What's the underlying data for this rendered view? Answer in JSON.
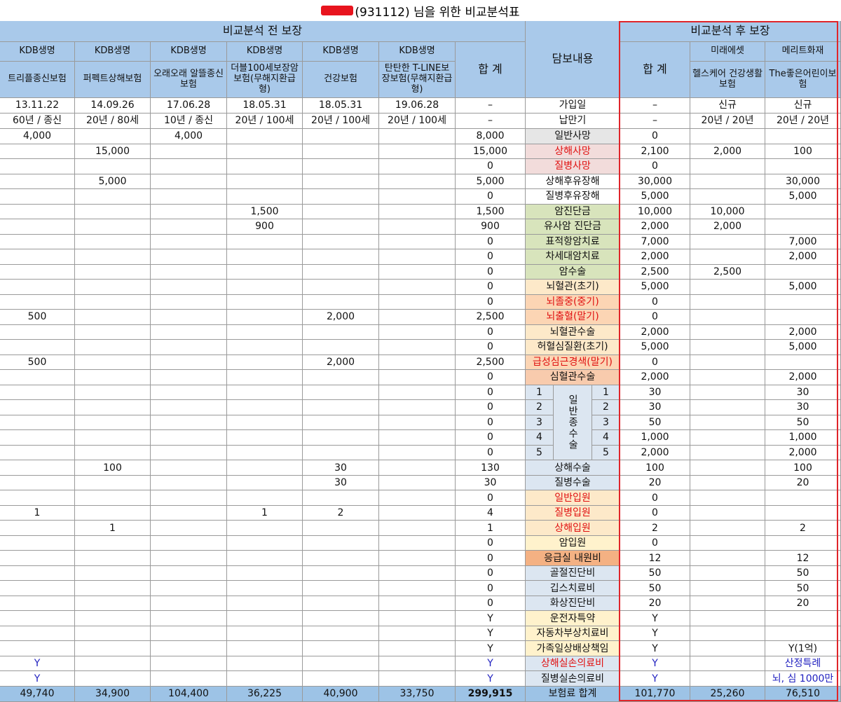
{
  "title": "(931112) 님을 위한 비교분석표",
  "header": {
    "before_label": "비교분석 전 보장",
    "after_label": "비교분석 후 보장",
    "content_label": "담보내용",
    "sum_label": "합 계",
    "after_sum_label": "합 계"
  },
  "before_plans": [
    {
      "company": "KDB생명",
      "name": "트리플종신보험",
      "join": "13.11.22",
      "term": "60년 / 종신"
    },
    {
      "company": "KDB생명",
      "name": "퍼펙트상해보험",
      "join": "14.09.26",
      "term": "20년 / 80세"
    },
    {
      "company": "KDB생명",
      "name": "오래오래 알뜰종신보험",
      "join": "17.06.28",
      "term": "10년 / 종신"
    },
    {
      "company": "KDB생명",
      "name": "더블100세보장암보험(무해지환급형)",
      "join": "18.05.31",
      "term": "20년 / 100세"
    },
    {
      "company": "KDB생명",
      "name": "건강보험",
      "join": "18.05.31",
      "term": "20년 / 100세"
    },
    {
      "company": "KDB생명",
      "name": "탄탄한 T-LINE보장보험(무해지환급형)",
      "join": "19.06.28",
      "term": "20년 / 100세"
    }
  ],
  "after_plans": [
    {
      "company": "미래에셋",
      "name": "헬스케어 건강생활보험",
      "join": "신규",
      "term": "20년 / 20년"
    },
    {
      "company": "메리트화재",
      "name": "The좋은어린이보험",
      "join": "신규",
      "term": "20년 / 20년"
    }
  ],
  "info_rows": [
    {
      "label": "가입일",
      "sum": "–",
      "after_sum": "–"
    },
    {
      "label": "납만기",
      "sum": "–",
      "after_sum": "–"
    }
  ],
  "surgery_group_label": "일반종수술",
  "rows": [
    {
      "label": "일반사망",
      "bg": "#e6e6e6",
      "before": [
        "4,000",
        null,
        "4,000",
        null,
        null,
        null
      ],
      "sum": "8,000",
      "after_sum": "0",
      "after": [
        null,
        null
      ]
    },
    {
      "label": "상해사망",
      "label_color": "#e01010",
      "bg": "#f2dcdb",
      "before": [
        null,
        "15,000",
        null,
        null,
        null,
        null
      ],
      "sum": "15,000",
      "after_sum": "2,100",
      "after": [
        "2,000",
        "100"
      ]
    },
    {
      "label": "질병사망",
      "label_color": "#e01010",
      "bg": "#f2dcdb",
      "before": [
        null,
        null,
        null,
        null,
        null,
        null
      ],
      "sum": "0",
      "after_sum": "0",
      "after": [
        null,
        null
      ]
    },
    {
      "label": "상해후유장해",
      "bg": "#ffffff",
      "before": [
        null,
        "5,000",
        null,
        null,
        null,
        null
      ],
      "sum": "5,000",
      "after_sum": "30,000",
      "after": [
        null,
        "30,000"
      ]
    },
    {
      "label": "질병후유장해",
      "bg": "#ffffff",
      "before": [
        null,
        null,
        null,
        null,
        null,
        null
      ],
      "sum": "0",
      "after_sum": "5,000",
      "after": [
        null,
        "5,000"
      ]
    },
    {
      "label": "암진단금",
      "bg": "#d8e4bc",
      "before": [
        null,
        null,
        null,
        "1,500",
        null,
        null
      ],
      "sum": "1,500",
      "after_sum": "10,000",
      "after": [
        "10,000",
        null
      ]
    },
    {
      "label": "유사암 진단금",
      "bg": "#d8e4bc",
      "before": [
        null,
        null,
        null,
        "900",
        null,
        null
      ],
      "sum": "900",
      "after_sum": "2,000",
      "after": [
        "2,000",
        null
      ]
    },
    {
      "label": "표적항암치료",
      "bg": "#d8e4bc",
      "before": [
        null,
        null,
        null,
        null,
        null,
        null
      ],
      "sum": "0",
      "after_sum": "7,000",
      "after": [
        null,
        "7,000"
      ]
    },
    {
      "label": "차세대암치료",
      "bg": "#d8e4bc",
      "before": [
        null,
        null,
        null,
        null,
        null,
        null
      ],
      "sum": "0",
      "after_sum": "2,000",
      "after": [
        null,
        "2,000"
      ]
    },
    {
      "label": "암수술",
      "bg": "#d8e4bc",
      "before": [
        null,
        null,
        null,
        null,
        null,
        null
      ],
      "sum": "0",
      "after_sum": "2,500",
      "after": [
        "2,500",
        null
      ]
    },
    {
      "label": "뇌혈관(초기)",
      "bg": "#fde9c9",
      "before": [
        null,
        null,
        null,
        null,
        null,
        null
      ],
      "sum": "0",
      "after_sum": "5,000",
      "after": [
        null,
        "5,000"
      ]
    },
    {
      "label": "뇌졸중(중기)",
      "label_color": "#e01010",
      "bg": "#fcd5b4",
      "before": [
        null,
        null,
        null,
        null,
        null,
        null
      ],
      "sum": "0",
      "after_sum": "0",
      "after": [
        null,
        null
      ]
    },
    {
      "label": "뇌출혈(말기)",
      "label_color": "#e01010",
      "bg": "#fcd5b4",
      "before": [
        "500",
        null,
        null,
        null,
        "2,000",
        null
      ],
      "sum": "2,500",
      "after_sum": "0",
      "after": [
        null,
        null
      ]
    },
    {
      "label": "뇌혈관수술",
      "bg": "#fde9c9",
      "before": [
        null,
        null,
        null,
        null,
        null,
        null
      ],
      "sum": "0",
      "after_sum": "2,000",
      "after": [
        null,
        "2,000"
      ]
    },
    {
      "label": "허혈심질환(초기)",
      "bg": "#fde9c9",
      "before": [
        null,
        null,
        null,
        null,
        null,
        null
      ],
      "sum": "0",
      "after_sum": "5,000",
      "after": [
        null,
        "5,000"
      ]
    },
    {
      "label": "급성심근경색(말기)",
      "label_color": "#e01010",
      "bg": "#fcd5b4",
      "before": [
        "500",
        null,
        null,
        null,
        "2,000",
        null
      ],
      "sum": "2,500",
      "after_sum": "0",
      "after": [
        null,
        null
      ]
    },
    {
      "label": "심혈관수술",
      "bg": "#f8cbad",
      "before": [
        null,
        null,
        null,
        null,
        null,
        null
      ],
      "sum": "0",
      "after_sum": "2,000",
      "after": [
        null,
        "2,000"
      ]
    },
    {
      "grade": "1",
      "bg": "#dce6f1",
      "before": [
        null,
        null,
        null,
        null,
        null,
        null
      ],
      "sum": "0",
      "after_sum": "30",
      "after": [
        null,
        "30"
      ]
    },
    {
      "grade": "2",
      "bg": "#dce6f1",
      "before": [
        null,
        null,
        null,
        null,
        null,
        null
      ],
      "sum": "0",
      "after_sum": "30",
      "after": [
        null,
        "30"
      ]
    },
    {
      "grade": "3",
      "bg": "#dce6f1",
      "before": [
        null,
        null,
        null,
        null,
        null,
        null
      ],
      "sum": "0",
      "after_sum": "50",
      "after": [
        null,
        "50"
      ]
    },
    {
      "grade": "4",
      "bg": "#dce6f1",
      "before": [
        null,
        null,
        null,
        null,
        null,
        null
      ],
      "sum": "0",
      "after_sum": "1,000",
      "after": [
        null,
        "1,000"
      ]
    },
    {
      "grade": "5",
      "bg": "#dce6f1",
      "before": [
        null,
        null,
        null,
        null,
        null,
        null
      ],
      "sum": "0",
      "after_sum": "2,000",
      "after": [
        null,
        "2,000"
      ]
    },
    {
      "label": "상해수술",
      "bg": "#dce6f1",
      "before": [
        null,
        "100",
        null,
        null,
        "30",
        null
      ],
      "sum": "130",
      "after_sum": "100",
      "after": [
        null,
        "100"
      ]
    },
    {
      "label": "질병수술",
      "bg": "#dce6f1",
      "before": [
        null,
        null,
        null,
        null,
        "30",
        null
      ],
      "sum": "30",
      "after_sum": "20",
      "after": [
        null,
        "20"
      ]
    },
    {
      "label": "일반입원",
      "label_color": "#e01010",
      "bg": "#fde9c9",
      "before": [
        null,
        null,
        null,
        null,
        null,
        null
      ],
      "sum": "0",
      "after_sum": "0",
      "after": [
        null,
        null
      ]
    },
    {
      "label": "질병입원",
      "label_color": "#e01010",
      "bg": "#fde9c9",
      "before": [
        "1",
        null,
        null,
        "1",
        "2",
        null
      ],
      "sum": "4",
      "after_sum": "0",
      "after": [
        null,
        null
      ]
    },
    {
      "label": "상해입원",
      "label_color": "#e01010",
      "bg": "#fde9c9",
      "before": [
        null,
        "1",
        null,
        null,
        null,
        null
      ],
      "sum": "1",
      "after_sum": "2",
      "after": [
        null,
        "2"
      ]
    },
    {
      "label": "암입원",
      "bg": "#fff2cc",
      "before": [
        null,
        null,
        null,
        null,
        null,
        null
      ],
      "sum": "0",
      "after_sum": "0",
      "after": [
        null,
        null
      ]
    },
    {
      "label": "응급실 내원비",
      "bg": "#f4b183",
      "before": [
        null,
        null,
        null,
        null,
        null,
        null
      ],
      "sum": "0",
      "after_sum": "12",
      "after": [
        null,
        "12"
      ]
    },
    {
      "label": "골절진단비",
      "bg": "#dce6f1",
      "before": [
        null,
        null,
        null,
        null,
        null,
        null
      ],
      "sum": "0",
      "after_sum": "50",
      "after": [
        null,
        "50"
      ]
    },
    {
      "label": "깁스치료비",
      "bg": "#dce6f1",
      "before": [
        null,
        null,
        null,
        null,
        null,
        null
      ],
      "sum": "0",
      "after_sum": "50",
      "after": [
        null,
        "50"
      ]
    },
    {
      "label": "화상진단비",
      "bg": "#dce6f1",
      "before": [
        null,
        null,
        null,
        null,
        null,
        null
      ],
      "sum": "0",
      "after_sum": "20",
      "after": [
        null,
        "20"
      ]
    },
    {
      "label": "운전자특약",
      "bg": "#fff2cc",
      "before": [
        null,
        null,
        null,
        null,
        null,
        null
      ],
      "sum": "Y",
      "after_sum": "Y",
      "after": [
        null,
        null
      ]
    },
    {
      "label": "자동차부상치료비",
      "bg": "#fff2cc",
      "before": [
        null,
        null,
        null,
        null,
        null,
        null
      ],
      "sum": "Y",
      "after_sum": "Y",
      "after": [
        null,
        null
      ]
    },
    {
      "label": "가족일상배상책임",
      "bg": "#fff2cc",
      "before": [
        null,
        null,
        null,
        null,
        null,
        null
      ],
      "sum": "Y",
      "after_sum": "Y",
      "after": [
        null,
        "Y(1억)"
      ]
    },
    {
      "label": "상해실손의료비",
      "label_color": "#e01010",
      "value_color": "#1f1fbf",
      "bg": "#dce6f1",
      "before": [
        "Y",
        null,
        null,
        null,
        null,
        null
      ],
      "sum": "Y",
      "after_sum": "Y",
      "after": [
        null,
        "산정특례"
      ]
    },
    {
      "label": "질병실손의료비",
      "value_color": "#1f1fbf",
      "bg": "#dce6f1",
      "before": [
        "Y",
        null,
        null,
        null,
        null,
        null
      ],
      "sum": "Y",
      "after_sum": "Y",
      "after": [
        null,
        "뇌, 심 1000만"
      ]
    }
  ],
  "total": {
    "label": "보험료 합계",
    "before": [
      "49,740",
      "34,900",
      "104,400",
      "36,225",
      "40,900",
      "33,750"
    ],
    "sum": "299,915",
    "after_sum": "101,770",
    "after": [
      "25,260",
      "76,510"
    ]
  }
}
